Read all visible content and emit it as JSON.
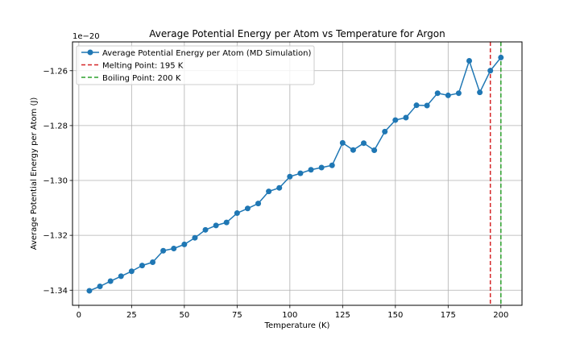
{
  "chart_data": {
    "type": "line",
    "title": "Average Potential Energy per Atom vs Temperature for Argon",
    "xlabel": "Temperature (K)",
    "ylabel": "Average Potential Energy per Atom (J)",
    "y_offset_label": "1e−20",
    "xlim": [
      -3,
      210
    ],
    "ylim": [
      -1.3455,
      -1.2495
    ],
    "xticks": [
      0,
      25,
      50,
      75,
      100,
      125,
      150,
      175,
      200
    ],
    "xtick_labels": [
      "0",
      "25",
      "50",
      "75",
      "100",
      "125",
      "150",
      "175",
      "200"
    ],
    "yticks": [
      -1.34,
      -1.32,
      -1.3,
      -1.28,
      -1.26
    ],
    "ytick_labels": [
      "−1.34",
      "−1.32",
      "−1.30",
      "−1.28",
      "−1.26"
    ],
    "grid": true,
    "legend_position": "top-left",
    "series": [
      {
        "name": "Average Potential Energy per Atom (MD Simulation)",
        "color": "#1f77b4",
        "marker": "circle",
        "x": [
          5,
          10,
          15,
          20,
          25,
          30,
          35,
          40,
          45,
          50,
          55,
          60,
          65,
          70,
          75,
          80,
          85,
          90,
          95,
          100,
          105,
          110,
          115,
          120,
          125,
          130,
          135,
          140,
          145,
          150,
          155,
          160,
          165,
          170,
          175,
          180,
          185,
          190,
          195,
          200
        ],
        "y": [
          -1.3402,
          -1.3386,
          -1.3367,
          -1.3349,
          -1.3331,
          -1.331,
          -1.3298,
          -1.3256,
          -1.3248,
          -1.3233,
          -1.3209,
          -1.318,
          -1.3164,
          -1.3153,
          -1.3119,
          -1.3102,
          -1.3084,
          -1.304,
          -1.3027,
          -1.2986,
          -1.2974,
          -1.2961,
          -1.2953,
          -1.2945,
          -1.2863,
          -1.2889,
          -1.2864,
          -1.289,
          -1.2822,
          -1.278,
          -1.2771,
          -1.2726,
          -1.2727,
          -1.2682,
          -1.269,
          -1.2682,
          -1.2564,
          -1.2679,
          -1.26,
          -1.2552
        ]
      }
    ],
    "vlines": [
      {
        "name": "Melting Point: 195 K",
        "x": 195,
        "color": "#d62728",
        "style": "dashed"
      },
      {
        "name": "Boiling Point: 200 K",
        "x": 200,
        "color": "#2ca02c",
        "style": "dashed"
      }
    ]
  }
}
